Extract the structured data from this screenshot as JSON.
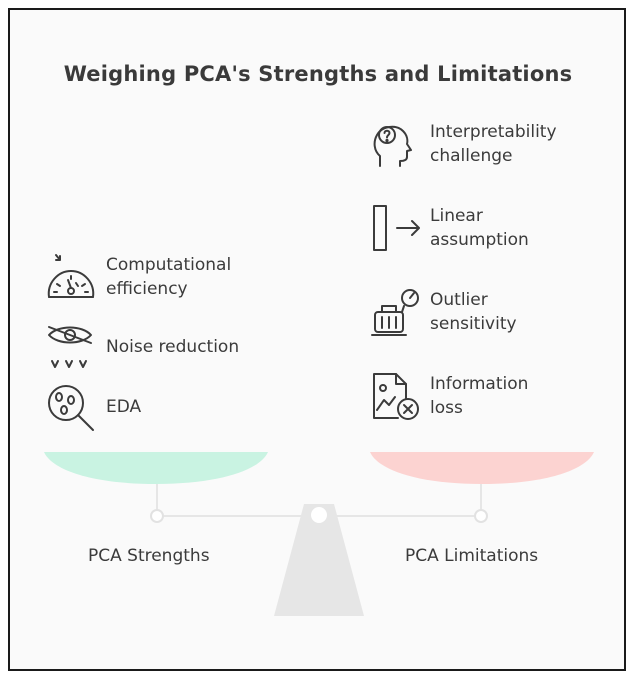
{
  "title": "Weighing PCA's Strengths and Limitations",
  "strengths": {
    "label": "PCA Strengths",
    "color": "#c9f3e2",
    "items": [
      {
        "label": "Computational\nefficiency",
        "icon": "speedometer-icon"
      },
      {
        "label": "Noise reduction",
        "icon": "eye-filter-icon"
      },
      {
        "label": "EDA",
        "icon": "magnifier-icon"
      }
    ]
  },
  "limitations": {
    "label": "PCA Limitations",
    "color": "#fcd3d1",
    "items": [
      {
        "label": "Interpretability\nchallenge",
        "icon": "head-question-icon"
      },
      {
        "label": "Linear\nassumption",
        "icon": "bar-arrow-icon"
      },
      {
        "label": "Outlier\nsensitivity",
        "icon": "luggage-gauge-icon"
      },
      {
        "label": "Information\nloss",
        "icon": "document-x-icon"
      }
    ]
  }
}
